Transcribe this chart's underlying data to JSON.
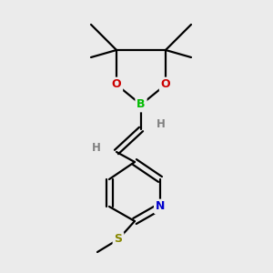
{
  "bg_color": "#ebebeb",
  "atom_colors": {
    "C": "#000000",
    "H": "#888888",
    "B": "#00bb00",
    "N": "#0000cc",
    "O": "#cc0000",
    "S": "#888800"
  },
  "figsize": [
    3.0,
    3.0
  ],
  "dpi": 100,
  "bond_lw": 1.6,
  "double_sep": 0.09
}
